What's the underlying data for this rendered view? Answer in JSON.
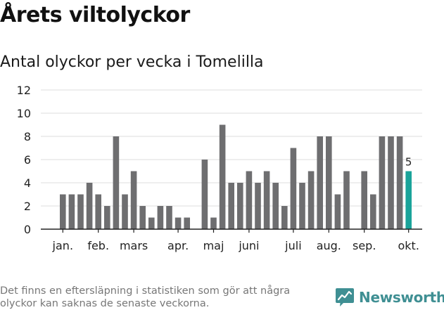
{
  "header": {
    "title": "Årets viltolyckor",
    "subtitle": "Antal olyckor per vecka i Tomelilla"
  },
  "chart_data": {
    "type": "bar",
    "title": "Årets viltolyckor",
    "subtitle": "Antal olyckor per vecka i Tomelilla",
    "xlabel": "",
    "ylabel": "",
    "ylim": [
      0,
      12
    ],
    "yticks": [
      "0",
      "2",
      "4",
      "6",
      "8",
      "10",
      "12"
    ],
    "grid": true,
    "legend": "none",
    "weeks": [
      1,
      2,
      3,
      4,
      5,
      6,
      7,
      8,
      9,
      10,
      11,
      12,
      13,
      14,
      15,
      16,
      17,
      18,
      19,
      20,
      21,
      22,
      23,
      24,
      25,
      26,
      27,
      28,
      29,
      30,
      31,
      32,
      33,
      34,
      35,
      36,
      37,
      38,
      39,
      40
    ],
    "values": [
      3,
      3,
      3,
      4,
      3,
      2,
      8,
      3,
      5,
      2,
      1,
      2,
      2,
      1,
      1,
      0,
      6,
      1,
      9,
      4,
      4,
      5,
      4,
      5,
      4,
      2,
      7,
      4,
      5,
      8,
      8,
      3,
      5,
      0,
      5,
      3,
      8,
      8,
      8,
      5
    ],
    "month_labels": [
      "jan.",
      "feb.",
      "mars",
      "apr.",
      "maj",
      "juni",
      "juli",
      "aug.",
      "sep.",
      "okt."
    ],
    "highlight_label": "5",
    "bar_color": "#6e6e70",
    "highlight_color": "#1aa39a",
    "grid_color": "#dddddd",
    "axis_color": "#222222"
  },
  "footer": {
    "note": "Det finns en eftersläpning i statistiken som gör att några olyckor kan saknas de senaste veckorna.",
    "brand": "Newsworthy",
    "logo_icon": "newsworthy-logo-icon",
    "brand_color": "#3f8f93"
  }
}
